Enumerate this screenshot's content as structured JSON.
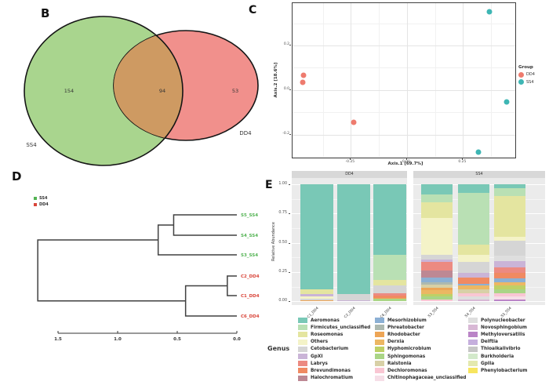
{
  "panels": {
    "B": "B",
    "C": "C",
    "D": "D",
    "E": "E"
  },
  "chart_data": [
    {
      "id": "venn",
      "type": "venn",
      "panel_label": "B",
      "sets": [
        {
          "name": "SS4",
          "unique": 154,
          "color": "#a9d58e"
        },
        {
          "name": "DD4",
          "unique": 53,
          "color": "#f1908c"
        }
      ],
      "intersection": {
        "value": 94,
        "color": "#ce9a62"
      },
      "outline_color": "#151515"
    },
    {
      "id": "pcoa",
      "type": "scatter",
      "panel_label": "C",
      "xlabel": "Axis.1  [69.7%]",
      "ylabel": "Axis.2  [18.6%]",
      "xlim": [
        -0.51,
        0.49
      ],
      "ylim": [
        -0.31,
        0.39
      ],
      "x_ticks": [
        {
          "v": -0.25,
          "label": "-0.25"
        },
        {
          "v": 0,
          "label": "0.00"
        },
        {
          "v": 0.25,
          "label": "0.25"
        }
      ],
      "y_ticks": [
        {
          "v": 0.2,
          "label": "0.2"
        },
        {
          "v": 0,
          "label": "0.0"
        },
        {
          "v": -0.2,
          "label": "-0.2"
        }
      ],
      "legend": {
        "title": "Group",
        "entries": [
          {
            "name": "DD4",
            "color": "#ee7b6e"
          },
          {
            "name": "SS4",
            "color": "#3eb6b4"
          }
        ]
      },
      "series": [
        {
          "name": "DD4",
          "color": "#ee7b6e",
          "points": [
            [
              -0.46,
              0.065
            ],
            [
              -0.465,
              0.036
            ],
            [
              -0.237,
              -0.144
            ]
          ]
        },
        {
          "name": "SS4",
          "color": "#3eb6b4",
          "points": [
            [
              0.367,
              0.351
            ],
            [
              0.445,
              -0.053
            ],
            [
              0.317,
              -0.278
            ]
          ]
        }
      ]
    },
    {
      "id": "cluster",
      "type": "dendrogram",
      "panel_label": "D",
      "legend": [
        {
          "name": "SS4",
          "color": "#53b353"
        },
        {
          "name": "DD4",
          "color": "#d9453a"
        }
      ],
      "leaves": [
        {
          "id": "S5_SS4",
          "label": "S5_SS4",
          "group": "SS4"
        },
        {
          "id": "S4_SS4",
          "label": "S4_SS4",
          "group": "SS4"
        },
        {
          "id": "S3_SS4",
          "label": "S3_SS4",
          "group": "SS4"
        },
        {
          "id": "C2_DD4",
          "label": "C2_DD4",
          "group": "DD4"
        },
        {
          "id": "C1_DD4",
          "label": "C1_DD4",
          "group": "DD4"
        },
        {
          "id": "C6_DD4",
          "label": "C6_DD4",
          "group": "DD4"
        }
      ],
      "joins": [
        {
          "id": "n1",
          "a": "S5_SS4",
          "b": "S4_SS4",
          "height": 0.53
        },
        {
          "id": "n2",
          "a": "n1",
          "b": "S3_SS4",
          "height": 0.66
        },
        {
          "id": "n3",
          "a": "C2_DD4",
          "b": "C1_DD4",
          "height": 0.08
        },
        {
          "id": "n4",
          "a": "n3",
          "b": "C6_DD4",
          "height": 0.43
        },
        {
          "id": "n5",
          "a": "n2",
          "b": "n4",
          "height": 1.67
        }
      ],
      "axis_ticks": [
        {
          "v": 1.5,
          "label": "1.5"
        },
        {
          "v": 1.0,
          "label": "1.0"
        },
        {
          "v": 0.5,
          "label": "0.5"
        },
        {
          "v": 0.0,
          "label": "0.0"
        }
      ],
      "line_color": "#404040"
    },
    {
      "id": "abundance",
      "type": "bar-stacked",
      "panel_label": "E",
      "ylabel": "Relative Abundance",
      "ylim": [
        0,
        1
      ],
      "y_ticks": [
        {
          "v": 1,
          "label": "1.00"
        },
        {
          "v": 0.75,
          "label": "0.75"
        },
        {
          "v": 0.5,
          "label": "0.50"
        },
        {
          "v": 0.25,
          "label": "0.25"
        },
        {
          "v": 0,
          "label": "0.00"
        }
      ],
      "legend_title": "Genus",
      "legend_columns": [
        9,
        9,
        8
      ],
      "genera": [
        {
          "name": "Aeromonas",
          "color": "#79c8b6"
        },
        {
          "name": "Firmicutes_unclassified",
          "color": "#b9e0b4"
        },
        {
          "name": "Roseomonas",
          "color": "#e4e5a0"
        },
        {
          "name": "Others",
          "color": "#f4f3c8"
        },
        {
          "name": "Cetobacterium",
          "color": "#d5d5d5"
        },
        {
          "name": "GpXI",
          "color": "#cab4d7"
        },
        {
          "name": "Labrys",
          "color": "#ec8a81"
        },
        {
          "name": "Brevundimonas",
          "color": "#f08a62"
        },
        {
          "name": "Halochromatium",
          "color": "#bd8894"
        },
        {
          "name": "Mesorhizobium",
          "color": "#8cb0d4"
        },
        {
          "name": "Phreatobacter",
          "color": "#adb9b0"
        },
        {
          "name": "Rhodobacter",
          "color": "#eda556"
        },
        {
          "name": "Derxia",
          "color": "#ecb763"
        },
        {
          "name": "Hyphomicrobium",
          "color": "#bed066"
        },
        {
          "name": "Sphingomonas",
          "color": "#aad586"
        },
        {
          "name": "Ralstonia",
          "color": "#d8d0a6"
        },
        {
          "name": "Dechloromonas",
          "color": "#f9c6d3"
        },
        {
          "name": "Chitinophagaceae_unclassified",
          "color": "#f6dee7"
        },
        {
          "name": "Polynucleobacter",
          "color": "#dedede"
        },
        {
          "name": "Novosphingobium",
          "color": "#d8b8d5"
        },
        {
          "name": "Methyloversatilis",
          "color": "#ba84c7"
        },
        {
          "name": "Delftia",
          "color": "#c5afdd"
        },
        {
          "name": "Thioalkalivibrio",
          "color": "#c6c6c6"
        },
        {
          "name": "Burkholderia",
          "color": "#d3e9cb"
        },
        {
          "name": "GpIIa",
          "color": "#e4e9ae"
        },
        {
          "name": "Phenylobacterium",
          "color": "#f7e55f"
        }
      ],
      "facets": [
        {
          "label": "DD4",
          "bars": [
            {
              "label": "C1_DD4",
              "segments": [
                [
                  "Aeromonas",
                  0.9
                ],
                [
                  "Roseomonas",
                  0.04
                ],
                [
                  "GpXI",
                  0.018
                ],
                [
                  "Others",
                  0.022
                ],
                [
                  "Cetobacterium",
                  0.012
                ],
                [
                  "Rhodobacter",
                  0.008
                ]
              ]
            },
            {
              "label": "C2_DD4",
              "segments": [
                [
                  "Aeromonas",
                  0.94
                ],
                [
                  "Cetobacterium",
                  0.052
                ],
                [
                  "GpXI",
                  0.008
                ]
              ]
            },
            {
              "label": "C6_DD4",
              "segments": [
                [
                  "Aeromonas",
                  0.6
                ],
                [
                  "Firmicutes_unclassified",
                  0.22
                ],
                [
                  "Roseomonas",
                  0.042
                ],
                [
                  "Cetobacterium",
                  0.072
                ],
                [
                  "Labrys",
                  0.02
                ],
                [
                  "Brevundimonas",
                  0.015
                ],
                [
                  "Rhodobacter",
                  0.012
                ],
                [
                  "Sphingomonas",
                  0.019
                ]
              ]
            }
          ]
        },
        {
          "label": "SS4",
          "bars": [
            {
              "label": "S3_SS4",
              "segments": [
                [
                  "Aeromonas",
                  0.09
                ],
                [
                  "Firmicutes_unclassified",
                  0.065
                ],
                [
                  "Roseomonas",
                  0.13
                ],
                [
                  "Others",
                  0.315
                ],
                [
                  "Cetobacterium",
                  0.045
                ],
                [
                  "GpXI",
                  0.02
                ],
                [
                  "Labrys",
                  0.075
                ],
                [
                  "Halochromatium",
                  0.06
                ],
                [
                  "Mesorhizobium",
                  0.04
                ],
                [
                  "Phreatobacter",
                  0.02
                ],
                [
                  "Ralstonia",
                  0.025
                ],
                [
                  "Rhodobacter",
                  0.02
                ],
                [
                  "Derxia",
                  0.03
                ],
                [
                  "Hyphomicrobium",
                  0.02
                ],
                [
                  "Sphingomonas",
                  0.03
                ],
                [
                  "Dechloromonas",
                  0.015
                ]
              ]
            },
            {
              "label": "S4_SS4",
              "segments": [
                [
                  "Aeromonas",
                  0.075
                ],
                [
                  "Firmicutes_unclassified",
                  0.44
                ],
                [
                  "Roseomonas",
                  0.09
                ],
                [
                  "Others",
                  0.055
                ],
                [
                  "Cetobacterium",
                  0.1
                ],
                [
                  "GpXI",
                  0.04
                ],
                [
                  "Brevundimonas",
                  0.05
                ],
                [
                  "Mesorhizobium",
                  0.015
                ],
                [
                  "Derxia",
                  0.035
                ],
                [
                  "Ralstonia",
                  0.03
                ],
                [
                  "Dechloromonas",
                  0.025
                ],
                [
                  "Polynucleobacter",
                  0.03
                ],
                [
                  "Novosphingobium",
                  0.015
                ]
              ]
            },
            {
              "label": "S5_SS4",
              "segments": [
                [
                  "Aeromonas",
                  0.035
                ],
                [
                  "Firmicutes_unclassified",
                  0.065
                ],
                [
                  "Roseomonas",
                  0.35
                ],
                [
                  "Others",
                  0.03
                ],
                [
                  "Cetobacterium",
                  0.13
                ],
                [
                  "Polynucleobacter",
                  0.045
                ],
                [
                  "GpXI",
                  0.055
                ],
                [
                  "Labrys",
                  0.045
                ],
                [
                  "Brevundimonas",
                  0.05
                ],
                [
                  "Mesorhizobium",
                  0.03
                ],
                [
                  "Derxia",
                  0.03
                ],
                [
                  "Hyphomicrobium",
                  0.03
                ],
                [
                  "Sphingomonas",
                  0.035
                ],
                [
                  "Dechloromonas",
                  0.03
                ],
                [
                  "Chitinophagaceae_unclassified",
                  0.025
                ],
                [
                  "Methyloversatilis",
                  0.015
                ]
              ]
            }
          ]
        }
      ]
    }
  ]
}
